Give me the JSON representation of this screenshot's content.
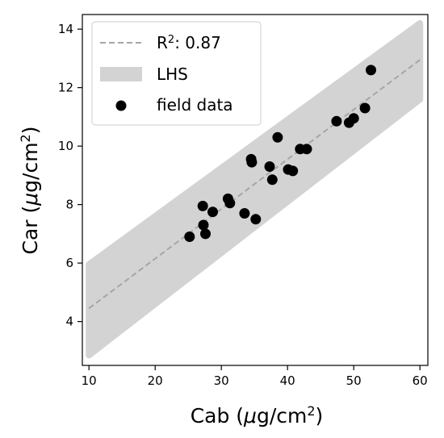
{
  "chart_data": {
    "type": "scatter",
    "title": "",
    "xlabel": {
      "main": "Cab (",
      "mu": "μ",
      "unit": "g/cm",
      "sup": "2",
      "close": ")"
    },
    "ylabel": {
      "main": "Car (",
      "mu": "μ",
      "unit": "g/cm",
      "sup": "2",
      "close": ")"
    },
    "xlim": [
      9,
      61.2
    ],
    "ylim": [
      2.5,
      14.5
    ],
    "xticks": [
      10,
      20,
      30,
      40,
      50,
      60
    ],
    "yticks": [
      4,
      6,
      8,
      10,
      12,
      14
    ],
    "grid": false,
    "legend_position": "top-left",
    "colors": {
      "band": "#d3d3d3",
      "fit_line": "#a6a6a6",
      "points": "#000000"
    },
    "fit_line": {
      "label_prefix": "R",
      "label_sup": "2",
      "label_suffix": ": 0.87",
      "x": [
        10,
        60
      ],
      "y": [
        4.45,
        12.95
      ]
    },
    "lhs_band": {
      "label": "LHS",
      "x_min": 10,
      "x_max": 60,
      "lower_y": [
        2.85,
        11.6
      ],
      "upper_y": [
        5.95,
        14.2
      ]
    },
    "series": [
      {
        "name": "field data",
        "points": [
          [
            25.2,
            6.9
          ],
          [
            27.3,
            7.3
          ],
          [
            27.6,
            7.0
          ],
          [
            27.2,
            7.95
          ],
          [
            28.7,
            7.75
          ],
          [
            31.0,
            8.2
          ],
          [
            31.3,
            8.05
          ],
          [
            33.5,
            7.7
          ],
          [
            35.2,
            7.5
          ],
          [
            34.5,
            9.55
          ],
          [
            34.6,
            9.45
          ],
          [
            37.3,
            9.3
          ],
          [
            37.7,
            8.85
          ],
          [
            38.5,
            10.3
          ],
          [
            40.1,
            9.2
          ],
          [
            40.8,
            9.15
          ],
          [
            41.9,
            9.9
          ],
          [
            42.9,
            9.9
          ],
          [
            47.4,
            10.85
          ],
          [
            49.3,
            10.8
          ],
          [
            50.0,
            10.95
          ],
          [
            51.7,
            11.3
          ],
          [
            52.6,
            12.6
          ]
        ]
      }
    ]
  }
}
